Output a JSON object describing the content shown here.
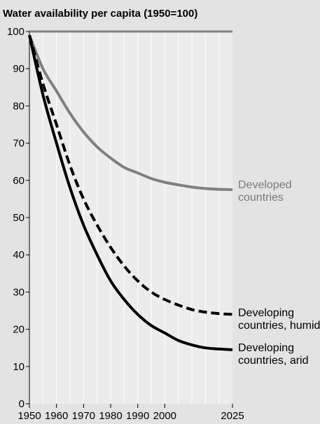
{
  "chart_data": {
    "type": "line",
    "title": "Water availability per capita (1950=100)",
    "xlabel": "",
    "ylabel": "",
    "x_ticks": [
      1950,
      1960,
      1970,
      1980,
      1990,
      2000,
      2025
    ],
    "y_ticks": [
      0,
      10,
      20,
      30,
      40,
      50,
      60,
      70,
      80,
      90,
      100
    ],
    "xlim": [
      1950,
      2025
    ],
    "ylim": [
      0,
      100
    ],
    "grid": true,
    "series": [
      {
        "name": "Developed countries",
        "label_lines": [
          "Developed",
          "countries"
        ],
        "color": "#808080",
        "style": "solid",
        "x": [
          1950,
          1955,
          1960,
          1965,
          1970,
          1975,
          1980,
          1985,
          1990,
          1995,
          2000,
          2005,
          2010,
          2015,
          2020,
          2025
        ],
        "y": [
          99,
          90,
          84,
          78,
          73,
          69,
          66,
          63.5,
          62,
          60.5,
          59.5,
          58.8,
          58.2,
          57.8,
          57.6,
          57.5
        ]
      },
      {
        "name": "Developing countries, humid",
        "label_lines": [
          "Developing",
          "countries, humid"
        ],
        "color": "#000000",
        "style": "dashed",
        "x": [
          1950,
          1955,
          1960,
          1965,
          1970,
          1975,
          1980,
          1985,
          1990,
          1995,
          2000,
          2005,
          2010,
          2015,
          2020,
          2025
        ],
        "y": [
          99,
          86,
          75,
          64,
          55,
          48,
          42,
          37,
          33,
          30,
          28,
          26.5,
          25.3,
          24.6,
          24.2,
          24
        ]
      },
      {
        "name": "Developing countries, arid",
        "label_lines": [
          "Developing",
          "countries, arid"
        ],
        "color": "#000000",
        "style": "solid",
        "x": [
          1950,
          1955,
          1960,
          1965,
          1970,
          1975,
          1980,
          1985,
          1990,
          1995,
          2000,
          2005,
          2010,
          2015,
          2020,
          2025
        ],
        "y": [
          99,
          83,
          70,
          58,
          48,
          40,
          33,
          28,
          24,
          21,
          19,
          17,
          15.8,
          15,
          14.7,
          14.5
        ]
      }
    ],
    "reference_line": {
      "y": 100,
      "color": "#808080"
    }
  }
}
